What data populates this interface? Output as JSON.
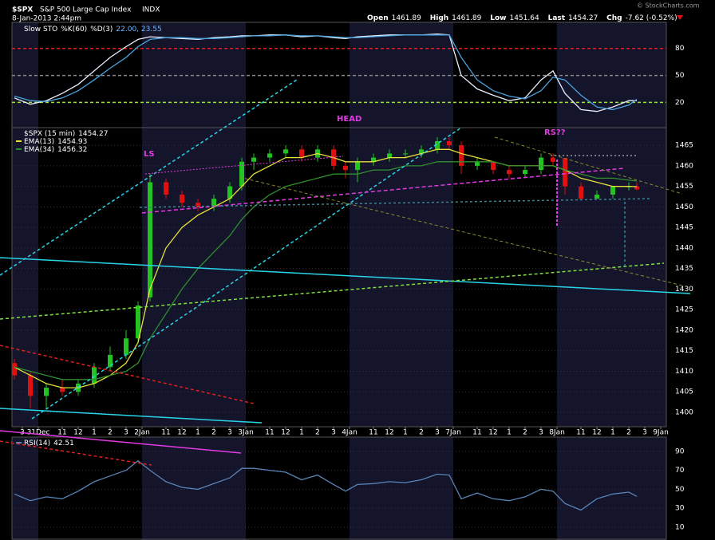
{
  "header": {
    "symbol": "$SPX",
    "name": "S&P 500 Large Cap Index",
    "exchange": "INDX",
    "date": "8-Jan-2013 2:44pm",
    "quote": [
      {
        "label": "Open",
        "value": 1461.89
      },
      {
        "label": "High",
        "value": 1461.89
      },
      {
        "label": "Low",
        "value": 1451.64
      },
      {
        "label": "Last",
        "value": 1454.27
      },
      {
        "label": "Chg",
        "value": "-7.62 (-0.52%)"
      }
    ],
    "credit": "© StockCharts.com"
  },
  "chart_data": [
    {
      "type": "line",
      "title": "Slow STO",
      "legend_values": "22.00, 23.55",
      "x": [
        -1.5,
        -0.5,
        0.5,
        1.5,
        2.5,
        3.5,
        4.5,
        5.5,
        6.25,
        7,
        8,
        9,
        10,
        11,
        12,
        12.75,
        13.5,
        14.5,
        15.5,
        16.5,
        17.5,
        18.5,
        19.25,
        20,
        21,
        22,
        23,
        24,
        25,
        25.75,
        26.5,
        27.5,
        28.5,
        29.5,
        30.5,
        31.5,
        32.25,
        33,
        34,
        35,
        36,
        37,
        37.5
      ],
      "series": [
        {
          "name": "%K(60)",
          "color": "#e8f0ff",
          "values": [
            25,
            18,
            22,
            30,
            40,
            55,
            70,
            82,
            90,
            93,
            92,
            91,
            90,
            92,
            93,
            94,
            94,
            95,
            95,
            93,
            94,
            92,
            91,
            93,
            94,
            95,
            95,
            95,
            96,
            95,
            50,
            35,
            28,
            22,
            25,
            45,
            55,
            30,
            12,
            10,
            15,
            22,
            22
          ]
        },
        {
          "name": "%D(3)",
          "color": "#4aa3df",
          "values": [
            27,
            22,
            21,
            25,
            33,
            45,
            58,
            70,
            82,
            90,
            92,
            92,
            91,
            91,
            92,
            93,
            94,
            94,
            95,
            94,
            94,
            93,
            92,
            92,
            93,
            94,
            95,
            95,
            95,
            95,
            70,
            45,
            33,
            27,
            24,
            33,
            48,
            45,
            28,
            15,
            12,
            17,
            23.55
          ]
        }
      ],
      "xlim": [
        -1.65,
        39.35
      ],
      "ylim": [
        -8,
        109
      ],
      "yticks": [
        20,
        50,
        80
      ],
      "ytick_colors": [
        "#9be53a",
        "#888888",
        "#e02020"
      ]
    },
    {
      "type": "candlestick",
      "title": "$SPX (15 min)",
      "x": [
        -1.5,
        -0.5,
        0.5,
        1.5,
        2.5,
        3.5,
        4.5,
        5.5,
        6.25,
        7,
        8,
        9,
        10,
        11,
        12,
        12.75,
        13.5,
        14.5,
        15.5,
        16.5,
        17.5,
        18.5,
        19.25,
        20,
        21,
        22,
        23,
        24,
        25,
        25.75,
        26.5,
        27.5,
        28.5,
        29.5,
        30.5,
        31.5,
        32.25,
        33,
        34,
        35,
        36,
        37,
        37.5
      ],
      "open": [
        1412,
        1409,
        1404,
        1406,
        1405,
        1407,
        1411,
        1414,
        1418,
        1428,
        1456,
        1453,
        1451,
        1450,
        1452,
        1455,
        1461,
        1462,
        1463,
        1464,
        1462,
        1464,
        1460,
        1459,
        1461,
        1462,
        1463,
        1463,
        1464,
        1466,
        1465,
        1460,
        1461,
        1459,
        1458,
        1459,
        1462,
        1461.89,
        1455,
        1452,
        1453,
        1455,
        1455
      ],
      "high": [
        1413,
        1410,
        1407,
        1408,
        1408,
        1412,
        1416,
        1420,
        1427,
        1458,
        1457,
        1454,
        1452,
        1453,
        1456,
        1462,
        1463,
        1464,
        1465,
        1465,
        1465,
        1465,
        1461,
        1462,
        1463,
        1464,
        1464,
        1465,
        1467,
        1467,
        1466,
        1462,
        1461,
        1460,
        1460,
        1463,
        1463,
        1461.89,
        1456,
        1454,
        1455,
        1456,
        1456
      ],
      "low": [
        1408,
        1401,
        1401,
        1404,
        1404,
        1406,
        1410,
        1413,
        1417,
        1427,
        1452,
        1450,
        1449,
        1449,
        1451,
        1454,
        1459,
        1461,
        1462,
        1461,
        1461,
        1459,
        1457,
        1456,
        1460,
        1461,
        1462,
        1462,
        1463,
        1464,
        1458,
        1459,
        1458,
        1457,
        1457,
        1458,
        1460,
        1453,
        1451.64,
        1452,
        1452,
        1454,
        1454
      ],
      "close": [
        1409,
        1404,
        1406,
        1405,
        1407,
        1411,
        1414,
        1418,
        1426,
        1456,
        1453,
        1451,
        1450,
        1452,
        1455,
        1461,
        1462,
        1463,
        1464,
        1462,
        1464,
        1460,
        1459,
        1461,
        1462,
        1463,
        1463,
        1464,
        1466,
        1465,
        1460,
        1461,
        1459,
        1458,
        1459,
        1462,
        1461,
        1455,
        1452,
        1453,
        1455,
        1455,
        1454.27
      ],
      "up_color": "#22c322",
      "down_color": "#e01010",
      "series": [
        {
          "name": "EMA(13)",
          "color": "#e8e23a",
          "values": [
            1411,
            1409,
            1407,
            1406,
            1406,
            1407,
            1409,
            1412,
            1417,
            1430,
            1440,
            1445,
            1448,
            1450,
            1452,
            1455,
            1458,
            1460,
            1462,
            1462,
            1463,
            1462,
            1461,
            1461,
            1461,
            1462,
            1462,
            1463,
            1464,
            1464,
            1463,
            1462,
            1461,
            1460,
            1460,
            1460,
            1460,
            1459,
            1457,
            1456,
            1455,
            1455,
            1454.93
          ]
        },
        {
          "name": "EMA(34)",
          "color": "#2f8f2f",
          "values": [
            1411,
            1410,
            1409,
            1408,
            1408,
            1408,
            1409,
            1410,
            1412,
            1418,
            1424,
            1430,
            1435,
            1439,
            1443,
            1447,
            1450,
            1453,
            1455,
            1456,
            1457,
            1458,
            1458,
            1458,
            1459,
            1459,
            1460,
            1460,
            1461,
            1461,
            1461,
            1461,
            1461,
            1460,
            1460,
            1460,
            1460,
            1459,
            1458,
            1457,
            1457,
            1456.5,
            1456.32
          ]
        }
      ],
      "xlim": [
        -1.65,
        39.35
      ],
      "ylim": [
        1396.5,
        1469.3
      ],
      "yticks": [
        1400,
        1405,
        1410,
        1415,
        1420,
        1425,
        1430,
        1435,
        1440,
        1445,
        1450,
        1455,
        1460,
        1465
      ],
      "xticks": [
        {
          "value": -1,
          "label": "3"
        },
        {
          "value": 0,
          "label": "31Dec"
        },
        {
          "value": 1.5,
          "label": "11"
        },
        {
          "value": 2.5,
          "label": "12"
        },
        {
          "value": 3.5,
          "label": "1"
        },
        {
          "value": 4.5,
          "label": "2"
        },
        {
          "value": 5.5,
          "label": "3"
        },
        {
          "value": 6.5,
          "label": "2Jan"
        },
        {
          "value": 8,
          "label": "11"
        },
        {
          "value": 9,
          "label": "12"
        },
        {
          "value": 10,
          "label": "1"
        },
        {
          "value": 11,
          "label": "2"
        },
        {
          "value": 12,
          "label": "3"
        },
        {
          "value": 13,
          "label": "3Jan"
        },
        {
          "value": 14.5,
          "label": "11"
        },
        {
          "value": 15.5,
          "label": "12"
        },
        {
          "value": 16.5,
          "label": "1"
        },
        {
          "value": 17.5,
          "label": "2"
        },
        {
          "value": 18.5,
          "label": "3"
        },
        {
          "value": 19.5,
          "label": "4Jan"
        },
        {
          "value": 21,
          "label": "11"
        },
        {
          "value": 22,
          "label": "12"
        },
        {
          "value": 23,
          "label": "1"
        },
        {
          "value": 24,
          "label": "2"
        },
        {
          "value": 25,
          "label": "3"
        },
        {
          "value": 26,
          "label": "7Jan"
        },
        {
          "value": 27.5,
          "label": "11"
        },
        {
          "value": 28.5,
          "label": "12"
        },
        {
          "value": 29.5,
          "label": "1"
        },
        {
          "value": 30.5,
          "label": "2"
        },
        {
          "value": 31.5,
          "label": "3"
        },
        {
          "value": 32.5,
          "label": "8Jan"
        },
        {
          "value": 34,
          "label": "11"
        },
        {
          "value": 35,
          "label": "12"
        },
        {
          "value": 36,
          "label": "1"
        },
        {
          "value": 37,
          "label": "2"
        },
        {
          "value": 38,
          "label": "3"
        },
        {
          "value": 39,
          "label": "9Jan"
        }
      ],
      "annotations": [
        "LS",
        "HEAD",
        "RS??"
      ],
      "grid": true
    },
    {
      "type": "line",
      "x": [
        -1.5,
        -0.5,
        0.5,
        1.5,
        2.5,
        3.5,
        4.5,
        5.5,
        6.25,
        7,
        8,
        9,
        10,
        11,
        12,
        12.75,
        13.5,
        14.5,
        15.5,
        16.5,
        17.5,
        18.5,
        19.25,
        20,
        21,
        22,
        23,
        24,
        25,
        25.75,
        26.5,
        27.5,
        28.5,
        29.5,
        30.5,
        31.5,
        32.25,
        33,
        34,
        35,
        36,
        37,
        37.5
      ],
      "series": [
        {
          "name": "RSI(14)",
          "color": "#5a84b8",
          "values": [
            45,
            38,
            42,
            40,
            48,
            58,
            64,
            70,
            80,
            70,
            58,
            52,
            50,
            56,
            62,
            72,
            72,
            70,
            68,
            60,
            65,
            55,
            48,
            55,
            56,
            58,
            57,
            60,
            66,
            65,
            40,
            46,
            40,
            38,
            42,
            50,
            48,
            35,
            28,
            40,
            45,
            47,
            42.51
          ]
        }
      ],
      "xlim": [
        -1.65,
        39.35
      ],
      "ylim": [
        -3.5,
        105
      ],
      "yticks": [
        10,
        30,
        50,
        70,
        90
      ],
      "grid": true
    }
  ]
}
